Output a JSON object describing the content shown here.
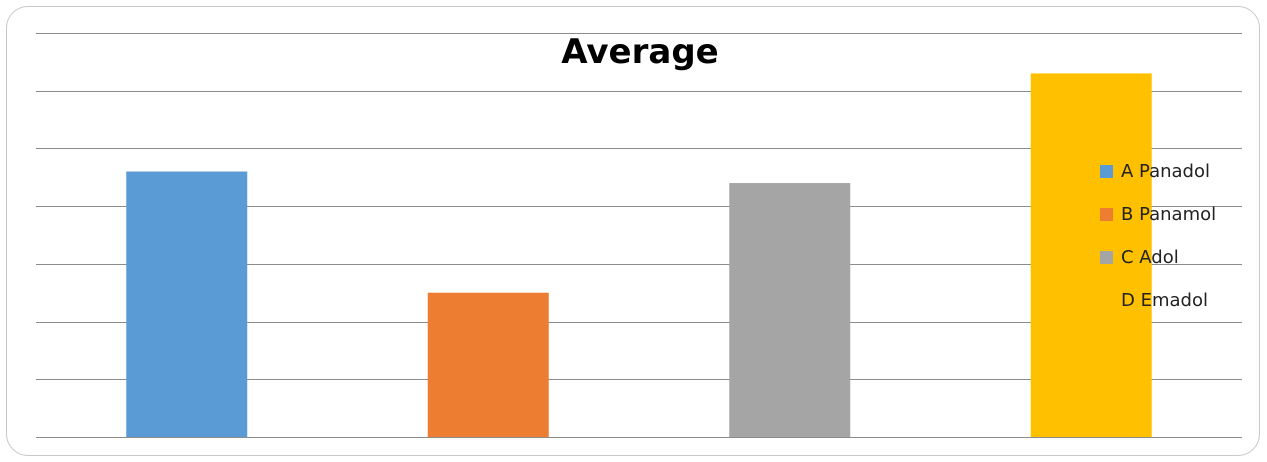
{
  "chart_data": {
    "type": "bar",
    "title": "Average",
    "categories": [
      "A Panadol",
      "B Panamol",
      "C Adol",
      "D Emadol"
    ],
    "values": [
      4.6,
      2.5,
      4.4,
      6.3
    ],
    "colors": [
      "#5B9BD5",
      "#ED7D31",
      "#A5A5A5",
      "#FFC000"
    ],
    "ylim": [
      0,
      7
    ],
    "grid": true,
    "legend": "right",
    "legend_markers_visible": [
      true,
      true,
      true,
      false
    ]
  }
}
